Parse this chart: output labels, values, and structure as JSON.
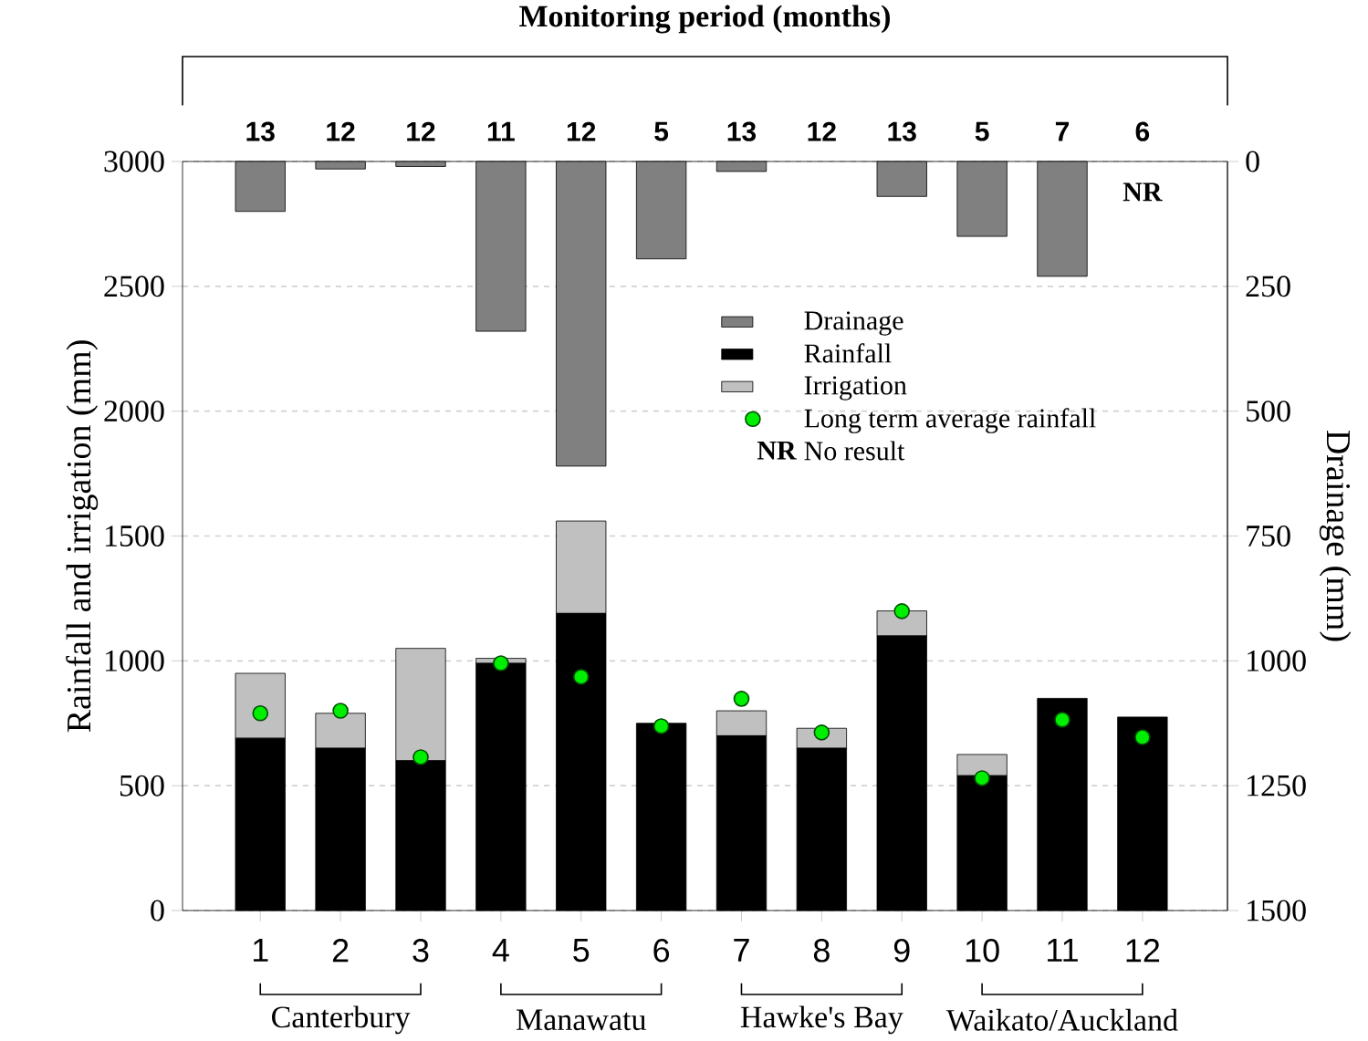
{
  "chart_data": {
    "type": "bar",
    "stacked": true,
    "x2label": "Monitoring period (months)",
    "ylabel": "Rainfall and irrigation (mm)",
    "y2label": "Drainage (mm)",
    "categories": [
      "1",
      "2",
      "3",
      "4",
      "5",
      "6",
      "7",
      "8",
      "9",
      "10",
      "11",
      "12"
    ],
    "series": [
      {
        "name": "Drainage",
        "type": "bar",
        "axis": "y2",
        "color": "#808080",
        "values": [
          100,
          15,
          10,
          340,
          610,
          195,
          20,
          0,
          70,
          150,
          230,
          null
        ]
      },
      {
        "name": "Rainfall",
        "color": "#000000",
        "values": [
          690,
          650,
          600,
          990,
          1190,
          750,
          700,
          650,
          1100,
          540,
          850,
          775
        ]
      },
      {
        "name": "Irrigation",
        "color": "#c0c0c0",
        "values": [
          260,
          140,
          450,
          20,
          370,
          0,
          100,
          80,
          100,
          85,
          0,
          0
        ]
      },
      {
        "name": "Long term average rainfall",
        "type": "scatter",
        "marker": "circle",
        "color": "#00ee00",
        "values": [
          790,
          800,
          614,
          990,
          936,
          738,
          848,
          713,
          1199,
          530,
          764,
          694
        ]
      }
    ],
    "ylim": [
      0,
      3000
    ],
    "yticks": [
      0,
      500,
      1000,
      1500,
      2000,
      2500,
      3000
    ],
    "y2lim": [
      1500,
      0
    ],
    "y2ticks": [
      0,
      250,
      500,
      750,
      1000,
      1250,
      1500
    ],
    "grid": "y",
    "legend": "top",
    "annotations": [
      "13",
      "12",
      "12",
      "11",
      "12",
      "5",
      "13",
      "12",
      "13",
      "5",
      "7",
      "6",
      "NR",
      "NR",
      "No result",
      "Canterbury",
      "Manawatu",
      "Hawke's Bay",
      "Waikato/Auckland"
    ]
  }
}
